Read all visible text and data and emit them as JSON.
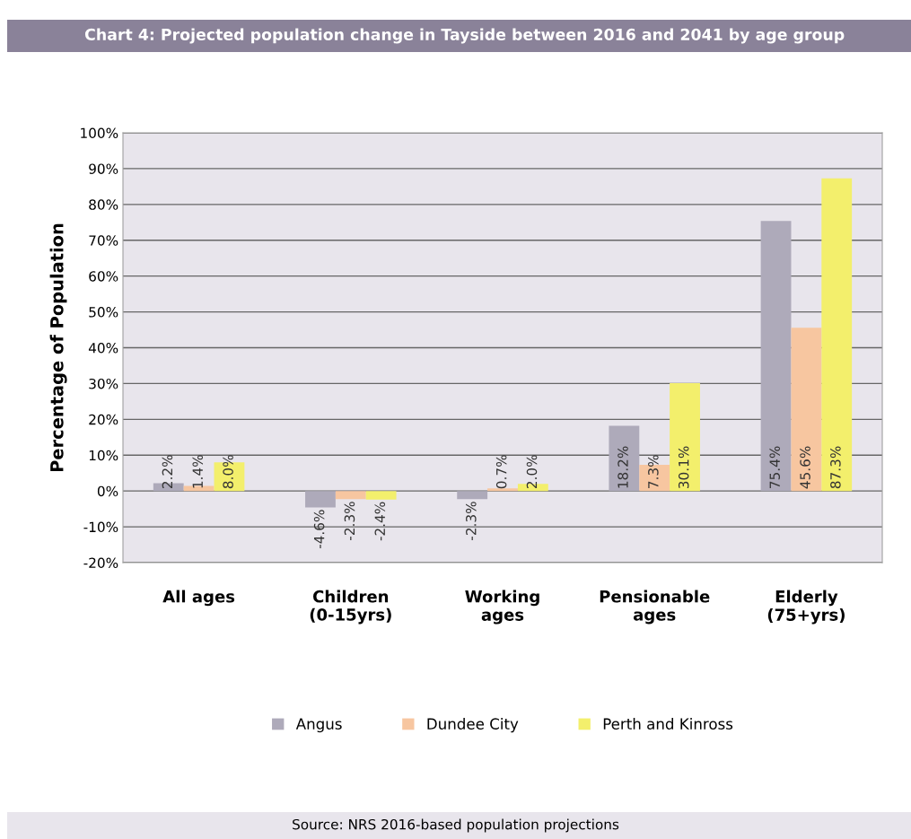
{
  "chart_data": {
    "type": "bar",
    "title": "Chart 4: Projected population change in Tayside between 2016 and 2041 by age group",
    "categories": [
      "All ages",
      "Children\n(0-15yrs)",
      "Working\nages",
      "Pensionable\nages",
      "Elderly\n(75+yrs)"
    ],
    "series": [
      {
        "name": "Angus",
        "color": "#aeaaba",
        "values": [
          2.2,
          -4.6,
          -2.3,
          18.2,
          75.4
        ],
        "value_labels": [
          "2.2%",
          "-4.6%",
          "-2.3%",
          "18.2%",
          "75.4%"
        ]
      },
      {
        "name": "Dundee City",
        "color": "#f7c6a0",
        "values": [
          1.4,
          -2.3,
          0.7,
          7.3,
          45.6
        ],
        "value_labels": [
          "1.4%",
          "-2.3%",
          "0.7%",
          "7.3%",
          "45.6%"
        ]
      },
      {
        "name": "Perth and Kinross",
        "color": "#f3ef6c",
        "values": [
          8.0,
          -2.4,
          2.0,
          30.1,
          87.3
        ],
        "value_labels": [
          "8.0%",
          "-2.4%",
          "2.0%",
          "30.1%",
          "87.3%"
        ]
      }
    ],
    "ylabel": "Percentage of Population",
    "ylim": [
      -20,
      100
    ],
    "yticks": [
      {
        "value": -20,
        "label": "-20%"
      },
      {
        "value": -10,
        "label": "-10%"
      },
      {
        "value": 0,
        "label": "0%"
      },
      {
        "value": 10,
        "label": "10%"
      },
      {
        "value": 20,
        "label": "20%"
      },
      {
        "value": 30,
        "label": "30%"
      },
      {
        "value": 40,
        "label": "40%"
      },
      {
        "value": 50,
        "label": "50%"
      },
      {
        "value": 60,
        "label": "60%"
      },
      {
        "value": 70,
        "label": "70%"
      },
      {
        "value": 80,
        "label": "80%"
      },
      {
        "value": 90,
        "label": "90%"
      },
      {
        "value": 100,
        "label": "100%"
      }
    ],
    "grid": "y",
    "legend": "bottom",
    "annotations": [
      "Source: NRS 2016-based population projections"
    ]
  }
}
